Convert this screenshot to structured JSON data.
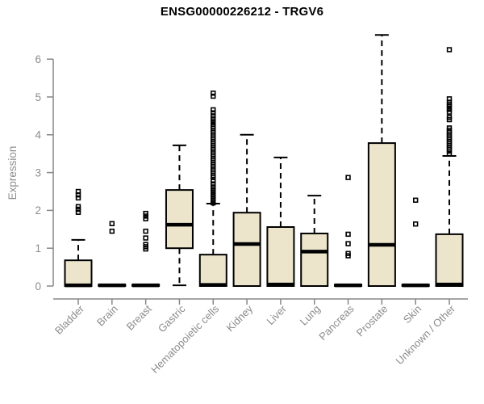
{
  "chart_data": {
    "type": "boxplot",
    "title": "ENSG00000226212 - TRGV6",
    "xlabel": "",
    "ylabel": "Expression",
    "ylim": [
      0,
      6.7
    ],
    "yticks": [
      0,
      1,
      2,
      3,
      4,
      5,
      6
    ],
    "grid": false,
    "legend": "none",
    "categories": [
      "Bladder",
      "Brain",
      "Breast",
      "Gastric",
      "Hematopoietic cells",
      "Kidney",
      "Liver",
      "Lung",
      "Pancreas",
      "Prostate",
      "Skin",
      "Unknown / Other"
    ],
    "boxes": [
      {
        "category": "Bladder",
        "whisker_low": 0,
        "q1": 0,
        "median": 0.02,
        "q3": 0.68,
        "whisker_high": 1.22,
        "outliers": [
          1.95,
          2.03,
          2.1,
          2.33,
          2.41,
          2.5
        ]
      },
      {
        "category": "Brain",
        "whisker_low": 0,
        "q1": 0,
        "median": 0.02,
        "q3": 0.04,
        "whisker_high": 0.04,
        "outliers": [
          1.45,
          1.65
        ]
      },
      {
        "category": "Breast",
        "whisker_low": 0,
        "q1": 0,
        "median": 0.02,
        "q3": 0.04,
        "whisker_high": 0.04,
        "outliers": [
          0.98,
          1.04,
          1.1,
          1.27,
          1.45,
          1.78,
          1.85,
          1.92
        ]
      },
      {
        "category": "Gastric",
        "whisker_low": 0.02,
        "q1": 1.0,
        "median": 1.62,
        "q3": 2.54,
        "whisker_high": 3.72,
        "outliers": []
      },
      {
        "category": "Hematopoietic cells",
        "whisker_low": 0,
        "q1": 0,
        "median": 0.03,
        "q3": 0.83,
        "whisker_high": 2.18,
        "outliers": [
          2.2,
          2.27,
          2.34,
          2.41,
          2.48,
          2.55,
          2.62,
          2.7,
          2.78,
          2.87,
          2.92,
          2.97,
          3.02,
          3.07,
          3.12,
          3.17,
          3.22,
          3.27,
          3.32,
          3.37,
          3.42,
          3.47,
          3.52,
          3.57,
          3.62,
          3.67,
          3.72,
          3.77,
          3.82,
          3.87,
          3.92,
          3.97,
          4.02,
          4.07,
          4.12,
          4.17,
          4.22,
          4.28,
          4.35,
          4.42,
          4.5,
          4.58,
          4.66,
          5.02,
          5.1
        ]
      },
      {
        "category": "Kidney",
        "whisker_low": 0,
        "q1": 0,
        "median": 1.11,
        "q3": 1.94,
        "whisker_high": 4.0,
        "outliers": []
      },
      {
        "category": "Liver",
        "whisker_low": 0,
        "q1": 0,
        "median": 0.04,
        "q3": 1.56,
        "whisker_high": 3.4,
        "outliers": []
      },
      {
        "category": "Lung",
        "whisker_low": 0,
        "q1": 0,
        "median": 0.91,
        "q3": 1.39,
        "whisker_high": 2.39,
        "outliers": []
      },
      {
        "category": "Pancreas",
        "whisker_low": 0,
        "q1": 0,
        "median": 0.02,
        "q3": 0.04,
        "whisker_high": 0.04,
        "outliers": [
          0.8,
          0.86,
          1.12,
          1.37,
          2.87
        ]
      },
      {
        "category": "Prostate",
        "whisker_low": 0,
        "q1": 0,
        "median": 1.09,
        "q3": 3.78,
        "whisker_high": 6.64,
        "outliers": []
      },
      {
        "category": "Skin",
        "whisker_low": 0,
        "q1": 0,
        "median": 0.02,
        "q3": 0.04,
        "whisker_high": 0.04,
        "outliers": [
          1.64,
          2.27
        ]
      },
      {
        "category": "Unknown / Other",
        "whisker_low": 0,
        "q1": 0,
        "median": 0.04,
        "q3": 1.37,
        "whisker_high": 3.44,
        "outliers": [
          3.5,
          3.57,
          3.62,
          3.67,
          3.72,
          3.77,
          3.82,
          3.87,
          3.92,
          3.97,
          4.02,
          4.07,
          4.12,
          4.18,
          4.4,
          4.46,
          4.6,
          4.67,
          4.74,
          4.8,
          4.86,
          4.95,
          6.25
        ]
      }
    ],
    "colors": {
      "box_fill": "#ece5cb",
      "box_stroke": "#000000",
      "median": "#000000",
      "whisker": "#000000",
      "outlier_stroke": "#000000",
      "axis_line": "#878787",
      "tick_text": "#8c8c8c",
      "title_text": "#000000",
      "background": "#ffffff"
    }
  }
}
